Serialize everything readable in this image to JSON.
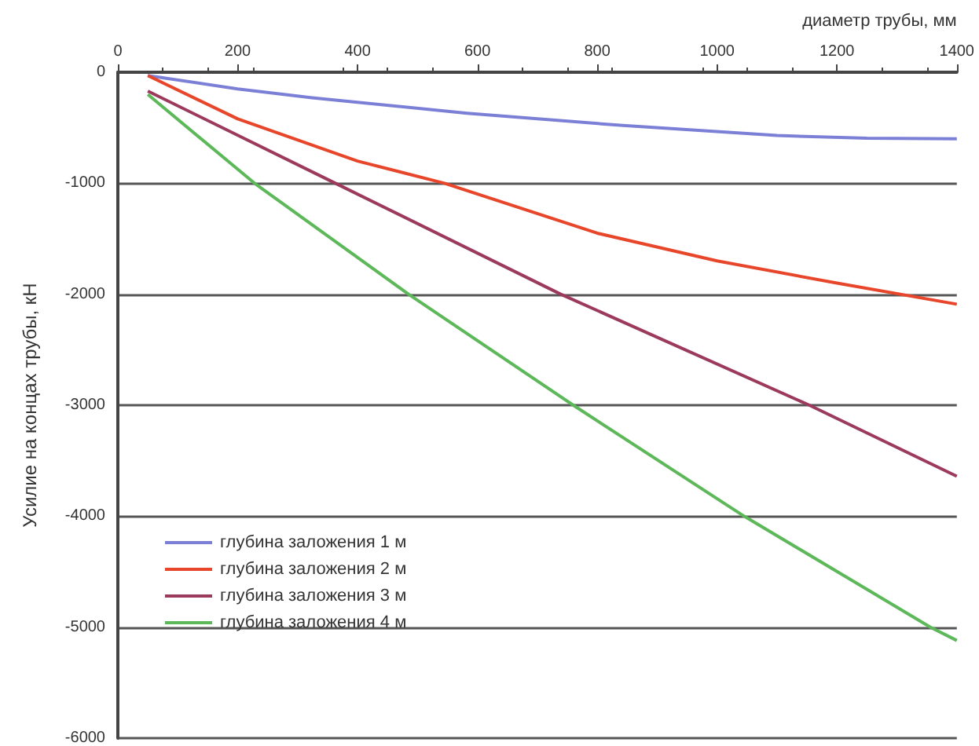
{
  "chart_data": {
    "type": "line",
    "xlabel": "диаметр трубы, мм",
    "ylabel": "Усилие на концах трубы, кН",
    "xlim": [
      0,
      1400
    ],
    "xticks": [
      0,
      200,
      400,
      600,
      800,
      1000,
      1200,
      1400
    ],
    "ylim": [
      -6000,
      0
    ],
    "yticks": [
      -6000,
      -5000,
      -4000,
      -3000,
      -2000,
      -1000,
      0
    ],
    "grid": "y",
    "legend": "bottom left",
    "marker": "none",
    "line_style": "solid",
    "series": [
      {
        "name": "глубина заложения 1 м",
        "color": "#7b7fd6",
        "x": [
          50,
          200,
          324,
          583,
          843,
          1100,
          1250,
          1400
        ],
        "values": [
          -30,
          -150,
          -230,
          -370,
          -480,
          -570,
          -595,
          -600
        ]
      },
      {
        "name": "глубина заложения 2 м",
        "color": "#e8462a",
        "x": [
          50,
          200,
          400,
          545,
          800,
          1000,
          1200,
          1400
        ],
        "values": [
          -30,
          -420,
          -800,
          -1000,
          -1450,
          -1700,
          -1900,
          -2090
        ]
      },
      {
        "name": "глубина заложения 3 м",
        "color": "#9c3a5e",
        "x": [
          50,
          363,
          739,
          1154,
          1400
        ],
        "values": [
          -170,
          -1000,
          -2000,
          -3000,
          -3640
        ]
      },
      {
        "name": "глубина заложения 4 м",
        "color": "#5db85a",
        "x": [
          50,
          228,
          485,
          760,
          1045,
          1356,
          1400
        ],
        "values": [
          -200,
          -1000,
          -2000,
          -3000,
          -4000,
          -5000,
          -5120
        ]
      }
    ]
  }
}
